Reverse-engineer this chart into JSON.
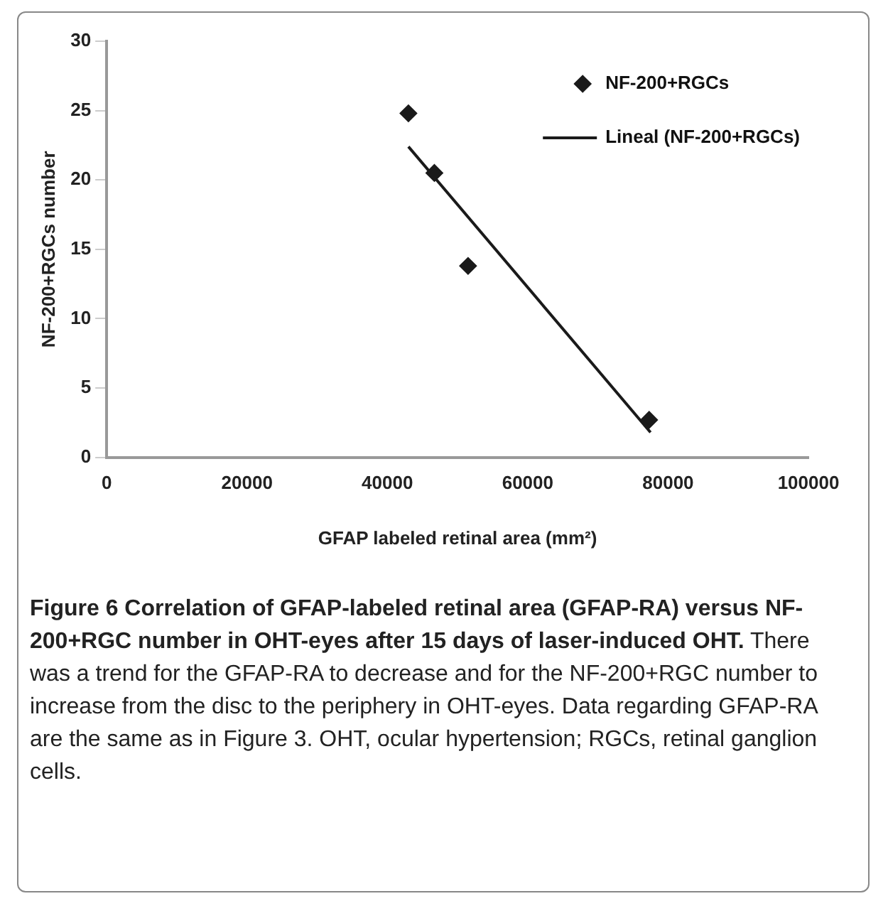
{
  "chart_data": {
    "type": "scatter",
    "xlabel": "GFAP labeled retinal area (mm²)",
    "ylabel": "NF-200+RGCs number",
    "xlim": [
      0,
      100000
    ],
    "xticks": [
      0,
      20000,
      40000,
      60000,
      80000,
      100000
    ],
    "ylim": [
      0,
      30
    ],
    "yticks": [
      0,
      5,
      10,
      15,
      20,
      25,
      30
    ],
    "grid": false,
    "legend": "top right",
    "marker": "diamond",
    "series": [
      {
        "name": "NF-200+RGCs",
        "color": "#1a1a1a",
        "x": [
          43000,
          46700,
          51500,
          77300
        ],
        "values": [
          24.8,
          20.5,
          13.8,
          2.7
        ]
      },
      {
        "name": "Lineal (NF-200+RGCs)",
        "type": "line",
        "color": "#1a1a1a",
        "marker": "none",
        "line_style": "solid",
        "x": [
          43000,
          77500
        ],
        "values": [
          22.4,
          1.8
        ]
      }
    ],
    "annotations": [
      "Figure 6 Correlation of GFAP-labeled retinal area (GFAP-RA) versus NF-200+RGC number in OHT-eyes after 15 days of laser-induced OHT.",
      "There was a trend for the GFAP-RA to decrease and for the NF-200+RGC number to increase from the disc to the periphery in OHT-eyes. Data regarding GFAP-RA are the same as in Figure 3. OHT, ocular hypertension; RGCs, retinal ganglion cells."
    ]
  }
}
